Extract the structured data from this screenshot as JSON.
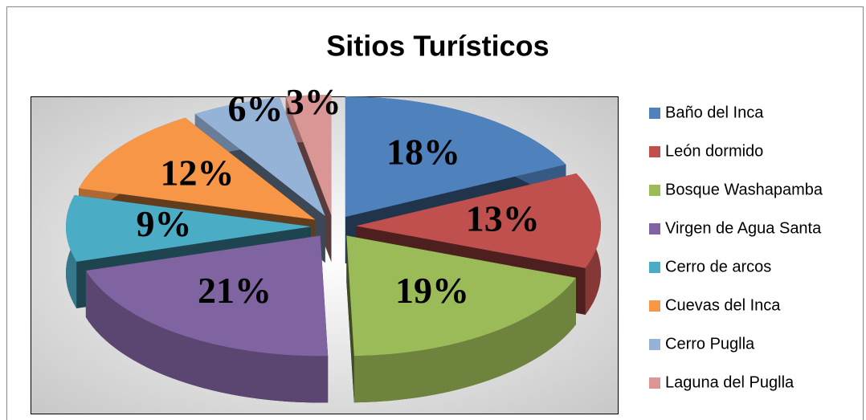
{
  "chart_data": {
    "type": "pie",
    "title": "Sitios Turísticos",
    "categories": [
      "Baño del Inca",
      "León dormido",
      "Bosque Washapamba",
      "Virgen de Agua Santa",
      "Cerro de arcos",
      "Cuevas del Inca",
      "Cerro Puglla",
      "Laguna del Puglla"
    ],
    "values": [
      18,
      13,
      19,
      21,
      9,
      12,
      6,
      3
    ],
    "value_labels": [
      "18%",
      "13%",
      "19%",
      "21%",
      "9%",
      "12%",
      "6%",
      "3%"
    ],
    "colors": [
      "#4f81bd",
      "#c0504d",
      "#9bbb59",
      "#8064a2",
      "#4bacc6",
      "#f79646",
      "#95b3d7",
      "#d99694"
    ],
    "legend": "right"
  }
}
